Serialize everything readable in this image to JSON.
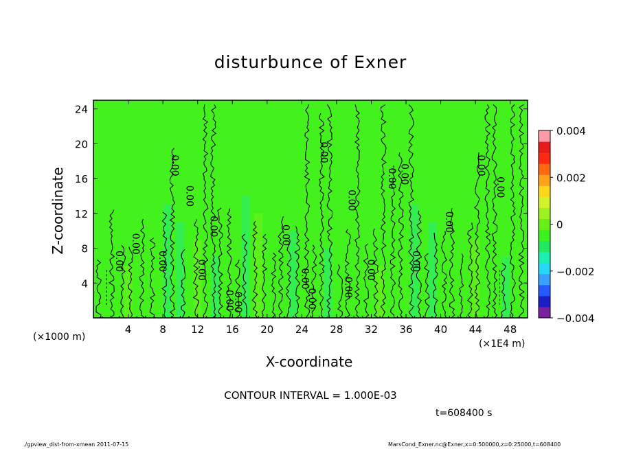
{
  "figure": {
    "title": "disturbunce of Exner",
    "xlabel": "X-coordinate",
    "ylabel": "Z-coordinate",
    "x_unit_note": "(×1000 m)",
    "x_scale_note": "(×1E4 m)",
    "contour_interval_text": "CONTOUR INTERVAL = 1.000E-03",
    "time_text": "t=608400 s",
    "footer_left": "./gpview_dist-from-xmean  2011-07-15",
    "footer_right": "MarsCond_Exner.nc@Exner,x=0:500000,z=0:25000,t=608400"
  },
  "chart_data": {
    "type": "heatmap",
    "title": "disturbunce of Exner",
    "xlabel": "X-coordinate",
    "ylabel": "Z-coordinate",
    "x_ticks": [
      "4",
      "8",
      "12",
      "16",
      "20",
      "24",
      "28",
      "32",
      "36",
      "40",
      "44",
      "48"
    ],
    "y_ticks": [
      "4",
      "8",
      "12",
      "16",
      "20",
      "24"
    ],
    "xlim": [
      0,
      50
    ],
    "ylim": [
      0,
      25
    ],
    "colorbar": {
      "ticks": [
        "0.004",
        "0.002",
        "0",
        "−0.002",
        "−0.004"
      ],
      "range": [
        -0.004,
        0.004
      ],
      "colors": [
        "#7a1fa2",
        "#1d1dc8",
        "#2858ff",
        "#3aa0ff",
        "#25d8f5",
        "#1cf0b0",
        "#22e860",
        "#3cf21c",
        "#66f018",
        "#9cf220",
        "#d2f22a",
        "#ffd71a",
        "#ffa21a",
        "#ff6a10",
        "#ff2a10",
        "#e81a1a",
        "#ff9aa8"
      ]
    },
    "contour_interval": 0.001,
    "contour_labels": [
      {
        "x": 2.6,
        "z": 6.5,
        "text": "0.00"
      },
      {
        "x": 4.5,
        "z": 8.5,
        "text": "0.00"
      },
      {
        "x": 7.6,
        "z": 6.5,
        "text": "0.00"
      },
      {
        "x": 9.0,
        "z": 17.5,
        "text": "0.00"
      },
      {
        "x": 10.7,
        "z": 14.0,
        "text": "0.00"
      },
      {
        "x": 12.1,
        "z": 5.5,
        "text": "0.00"
      },
      {
        "x": 13.5,
        "z": 10.5,
        "text": "0.00"
      },
      {
        "x": 15.3,
        "z": 2.0,
        "text": "0.00"
      },
      {
        "x": 16.3,
        "z": 1.8,
        "text": "0.00"
      },
      {
        "x": 21.8,
        "z": 9.5,
        "text": "0.00"
      },
      {
        "x": 24.0,
        "z": 4.5,
        "text": "0.00"
      },
      {
        "x": 24.8,
        "z": 2.2,
        "text": "0.00"
      },
      {
        "x": 26.2,
        "z": 19.0,
        "text": "0.00"
      },
      {
        "x": 29.0,
        "z": 3.5,
        "text": "0.00"
      },
      {
        "x": 29.4,
        "z": 13.5,
        "text": "0.00"
      },
      {
        "x": 31.6,
        "z": 5.5,
        "text": "0.00"
      },
      {
        "x": 34.0,
        "z": 16.0,
        "text": "0.00"
      },
      {
        "x": 35.5,
        "z": 16.5,
        "text": "0.00"
      },
      {
        "x": 36.8,
        "z": 6.5,
        "text": "0.00"
      },
      {
        "x": 40.6,
        "z": 11.0,
        "text": "0.00"
      },
      {
        "x": 44.3,
        "z": 17.5,
        "text": "0.00"
      },
      {
        "x": 46.5,
        "z": 15.0,
        "text": "0.00"
      }
    ]
  }
}
